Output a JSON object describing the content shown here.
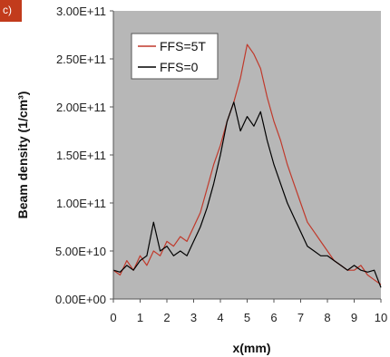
{
  "colors": {
    "plot_background": "#b7b7b7",
    "panel_tag": "#c23b1c",
    "series_ffs5t": "#c0392b",
    "series_ffs0": "#000000"
  },
  "panel_label": "c)",
  "chart_data": {
    "type": "line",
    "title": "",
    "xlabel": "x(mm)",
    "ylabel": "Beam density (1/cm³)",
    "xlim": [
      0,
      10
    ],
    "ylim": [
      0,
      300000000000
    ],
    "grid": false,
    "legend_position": "top-left",
    "x_ticks": [
      {
        "value": 0,
        "label": "0"
      },
      {
        "value": 1,
        "label": "1"
      },
      {
        "value": 2,
        "label": "2"
      },
      {
        "value": 3,
        "label": "3"
      },
      {
        "value": 4,
        "label": "4"
      },
      {
        "value": 5,
        "label": "5"
      },
      {
        "value": 6,
        "label": "6"
      },
      {
        "value": 7,
        "label": "7"
      },
      {
        "value": 8,
        "label": "8"
      },
      {
        "value": 9,
        "label": "9"
      },
      {
        "value": 10,
        "label": "10"
      }
    ],
    "y_ticks": [
      {
        "value": 0,
        "label": "0.00E+00"
      },
      {
        "value": 50000000000,
        "label": "5.00E+10"
      },
      {
        "value": 100000000000,
        "label": "1.00E+11"
      },
      {
        "value": 150000000000,
        "label": "1.50E+11"
      },
      {
        "value": 200000000000,
        "label": "2.00E+11"
      },
      {
        "value": 250000000000,
        "label": "2.50E+11"
      },
      {
        "value": 300000000000,
        "label": "3.00E+11"
      }
    ],
    "series": [
      {
        "name": "FFS=5T",
        "x": [
          0,
          0.25,
          0.5,
          0.75,
          1.0,
          1.25,
          1.5,
          1.75,
          2.0,
          2.25,
          2.5,
          2.75,
          3.0,
          3.25,
          3.5,
          3.75,
          4.0,
          4.25,
          4.5,
          4.75,
          5.0,
          5.25,
          5.5,
          5.75,
          6.0,
          6.25,
          6.5,
          6.75,
          7.0,
          7.25,
          7.5,
          7.75,
          8.0,
          8.25,
          8.5,
          8.75,
          9.0,
          9.25,
          9.5,
          9.75,
          10.0
        ],
        "values": [
          30000000000,
          25000000000,
          40000000000,
          30000000000,
          45000000000,
          35000000000,
          50000000000,
          45000000000,
          60000000000,
          55000000000,
          65000000000,
          60000000000,
          75000000000,
          90000000000,
          115000000000,
          140000000000,
          160000000000,
          185000000000,
          205000000000,
          230000000000,
          265000000000,
          255000000000,
          240000000000,
          210000000000,
          185000000000,
          165000000000,
          140000000000,
          120000000000,
          100000000000,
          80000000000,
          70000000000,
          60000000000,
          50000000000,
          40000000000,
          35000000000,
          30000000000,
          30000000000,
          35000000000,
          25000000000,
          20000000000,
          15000000000
        ]
      },
      {
        "name": "FFS=0",
        "x": [
          0,
          0.25,
          0.5,
          0.75,
          1.0,
          1.25,
          1.5,
          1.75,
          2.0,
          2.25,
          2.5,
          2.75,
          3.0,
          3.25,
          3.5,
          3.75,
          4.0,
          4.25,
          4.5,
          4.75,
          5.0,
          5.25,
          5.5,
          5.75,
          6.0,
          6.25,
          6.5,
          6.75,
          7.0,
          7.25,
          7.5,
          7.75,
          8.0,
          8.25,
          8.5,
          8.75,
          9.0,
          9.25,
          9.5,
          9.75,
          10.0
        ],
        "values": [
          30000000000,
          28000000000,
          35000000000,
          30000000000,
          40000000000,
          45000000000,
          80000000000,
          50000000000,
          55000000000,
          45000000000,
          50000000000,
          45000000000,
          60000000000,
          75000000000,
          95000000000,
          120000000000,
          150000000000,
          185000000000,
          205000000000,
          175000000000,
          190000000000,
          180000000000,
          195000000000,
          165000000000,
          140000000000,
          120000000000,
          100000000000,
          85000000000,
          70000000000,
          55000000000,
          50000000000,
          45000000000,
          45000000000,
          40000000000,
          35000000000,
          30000000000,
          35000000000,
          30000000000,
          28000000000,
          30000000000,
          12000000000
        ]
      }
    ]
  }
}
